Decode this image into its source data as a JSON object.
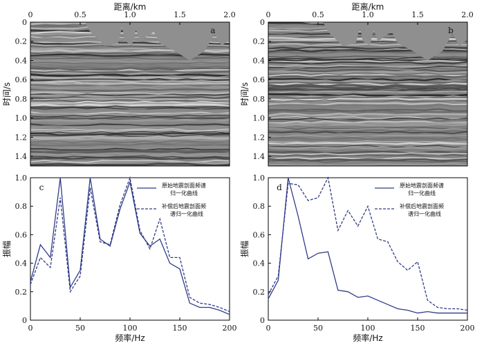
{
  "panels": [
    {
      "label": "a"
    },
    {
      "label": "b"
    },
    {
      "label": "c"
    },
    {
      "label": "d"
    }
  ],
  "chart_data": [
    {
      "id": "a",
      "type": "heatmap",
      "xlabel": "距离/km",
      "ylabel": "时间/s",
      "x_ticks": [
        "0",
        "0.5",
        "1.0",
        "1.5",
        "2.0"
      ],
      "y_ticks": [
        "0",
        "0.2",
        "0.4",
        "0.6",
        "0.8",
        "1.0",
        "1.2",
        "1.4"
      ],
      "xlim": [
        0,
        2.0
      ],
      "ylim": [
        0,
        1.5
      ]
    },
    {
      "id": "b",
      "type": "heatmap",
      "xlabel": "距离/km",
      "ylabel": "时间/s",
      "x_ticks": [
        "0",
        "0.5",
        "1.0",
        "1.5",
        "2.0"
      ],
      "y_ticks": [
        "0",
        "0.2",
        "0.4",
        "0.6",
        "0.8",
        "1.0",
        "1.2",
        "1.4"
      ],
      "xlim": [
        0,
        2.0
      ],
      "ylim": [
        0,
        1.5
      ]
    },
    {
      "id": "c",
      "type": "line",
      "xlabel": "频率/Hz",
      "ylabel": "振幅",
      "xlim": [
        0,
        200
      ],
      "ylim": [
        0,
        1.0
      ],
      "x_ticks": [
        "0",
        "50",
        "100",
        "150",
        "200"
      ],
      "y_ticks": [
        "0",
        "0.2",
        "0.4",
        "0.6",
        "0.8",
        "1.0"
      ],
      "x": [
        0,
        10,
        20,
        30,
        40,
        50,
        60,
        70,
        80,
        90,
        100,
        110,
        120,
        130,
        140,
        150,
        160,
        170,
        180,
        190,
        200
      ],
      "series": [
        {
          "name": "原始地震剖面频谱归一化曲线",
          "style": "solid",
          "values": [
            0.27,
            0.53,
            0.44,
            1.0,
            0.23,
            0.35,
            1.0,
            0.57,
            0.52,
            0.78,
            0.97,
            0.61,
            0.52,
            0.57,
            0.4,
            0.36,
            0.12,
            0.09,
            0.09,
            0.07,
            0.04
          ]
        },
        {
          "name": "补偿后地震剖面频谱归一化曲线",
          "style": "dashed",
          "values": [
            0.25,
            0.44,
            0.37,
            0.86,
            0.2,
            0.31,
            0.93,
            0.55,
            0.53,
            0.81,
            1.0,
            0.63,
            0.5,
            0.71,
            0.44,
            0.44,
            0.16,
            0.12,
            0.11,
            0.09,
            0.06
          ]
        }
      ],
      "legend_position": "top-right",
      "legend": [
        {
          "line1": "原始地震剖面频谱",
          "line2": "归一化曲线",
          "style": "solid"
        },
        {
          "line1": "补偿后地震剖面频",
          "line2": "谱归一化曲线",
          "style": "dashed"
        }
      ],
      "line_color": "#2e3a87"
    },
    {
      "id": "d",
      "type": "line",
      "xlabel": "频率/Hz",
      "ylabel": "振幅",
      "xlim": [
        0,
        200
      ],
      "ylim": [
        0,
        1.0
      ],
      "x_ticks": [
        "0",
        "50",
        "100",
        "150",
        "200"
      ],
      "y_ticks": [
        "0",
        "0.2",
        "0.4",
        "0.6",
        "0.8",
        "1.0"
      ],
      "x": [
        0,
        10,
        20,
        30,
        40,
        50,
        60,
        70,
        80,
        90,
        100,
        110,
        120,
        130,
        140,
        150,
        160,
        170,
        180,
        190,
        200
      ],
      "series": [
        {
          "name": "原始地震剖面频谱归一化曲线",
          "style": "solid",
          "values": [
            0.15,
            0.28,
            1.0,
            0.73,
            0.43,
            0.47,
            0.48,
            0.21,
            0.2,
            0.16,
            0.17,
            0.14,
            0.11,
            0.08,
            0.07,
            0.05,
            0.06,
            0.05,
            0.05,
            0.05,
            0.05
          ]
        },
        {
          "name": "补偿后地震剖面频谱归一化曲线",
          "style": "dashed",
          "values": [
            0.18,
            0.31,
            0.96,
            0.95,
            0.84,
            0.86,
            1.0,
            0.63,
            0.77,
            0.66,
            0.8,
            0.57,
            0.55,
            0.41,
            0.35,
            0.41,
            0.14,
            0.09,
            0.08,
            0.08,
            0.07
          ]
        }
      ],
      "legend_position": "top-right",
      "legend": [
        {
          "line1": "原始地震剖面频谱",
          "line2": "归一化曲线",
          "style": "solid"
        },
        {
          "line1": "补偿后地震剖面频",
          "line2": "谱归一化曲线",
          "style": "dashed"
        }
      ],
      "line_color": "#2e3a87"
    }
  ]
}
